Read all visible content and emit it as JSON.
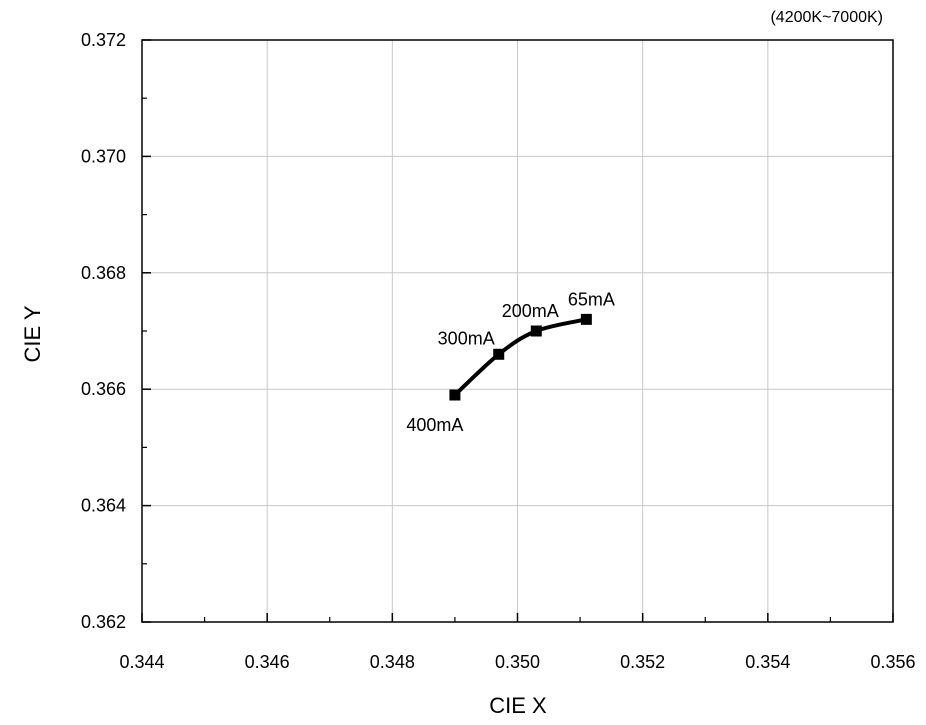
{
  "chart_data": {
    "type": "line",
    "note": "(4200K~7000K)",
    "xlabel": "CIE X",
    "ylabel": "CIE Y",
    "xlim": [
      0.344,
      0.356
    ],
    "ylim": [
      0.362,
      0.372
    ],
    "x_ticks": [
      "0.344",
      "0.346",
      "0.348",
      "0.350",
      "0.352",
      "0.354",
      "0.356"
    ],
    "y_ticks": [
      "0.362",
      "0.364",
      "0.366",
      "0.368",
      "0.370",
      "0.372"
    ],
    "grid": true,
    "series": [
      {
        "color": "#000000",
        "marker": "square",
        "points": [
          {
            "x": 0.349,
            "y": 0.3659,
            "label": "400mA"
          },
          {
            "x": 0.3497,
            "y": 0.3666,
            "label": "300mA"
          },
          {
            "x": 0.3503,
            "y": 0.367,
            "label": "200mA"
          },
          {
            "x": 0.3511,
            "y": 0.3672,
            "label": "65mA"
          }
        ]
      }
    ]
  }
}
